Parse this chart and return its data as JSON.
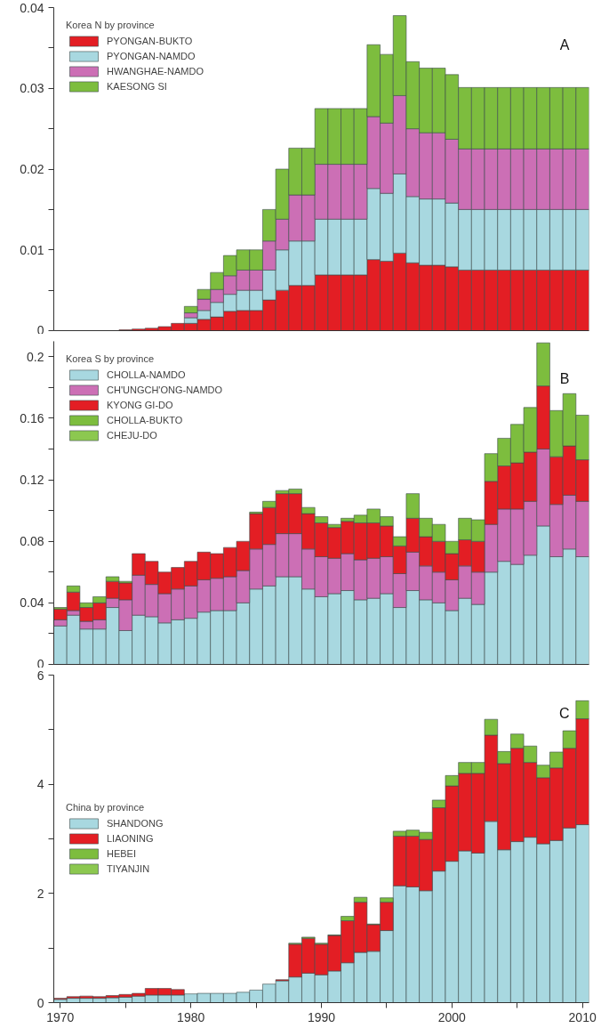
{
  "chart_data": [
    {
      "type": "bar",
      "stacked": true,
      "legend_title": "Korea N by province",
      "annotations": [
        "A"
      ],
      "legend": "top left",
      "grid": false,
      "tick_labels": "y",
      "x": [
        1970,
        1971,
        1972,
        1973,
        1974,
        1975,
        1976,
        1977,
        1978,
        1979,
        1980,
        1981,
        1982,
        1983,
        1984,
        1985,
        1986,
        1987,
        1988,
        1989,
        1990,
        1991,
        1992,
        1993,
        1994,
        1995,
        1996,
        1997,
        1998,
        1999,
        2000,
        2001,
        2002,
        2003,
        2004,
        2005,
        2006,
        2007,
        2008,
        2009,
        2010
      ],
      "xlim": [
        1969.5,
        2010.5
      ],
      "ylim": [
        0,
        0.04
      ],
      "yticks": [
        0,
        {
          "value": 0.005,
          "label": null
        },
        0.01,
        {
          "value": 0.015,
          "label": null
        },
        0.02,
        {
          "value": 0.025,
          "label": null
        },
        0.03,
        {
          "value": 0.035,
          "label": null
        },
        0.04
      ],
      "series": [
        {
          "name": "PYONGAN-BUKTO",
          "color": "#e31e24",
          "values": [
            0,
            0,
            0,
            0,
            0,
            0.0001,
            0.0002,
            0.0003,
            0.0005,
            0.0009,
            0.0009,
            0.0014,
            0.0017,
            0.0024,
            0.0025,
            0.0025,
            0.0038,
            0.005,
            0.0056,
            0.0056,
            0.0069,
            0.0069,
            0.0069,
            0.0069,
            0.0088,
            0.0086,
            0.0096,
            0.0084,
            0.0081,
            0.0081,
            0.0079,
            0.0075,
            0.0075,
            0.0075,
            0.0075,
            0.0075,
            0.0075,
            0.0075,
            0.0075,
            0.0075,
            0.0075
          ]
        },
        {
          "name": "PYONGAN-NAMDO",
          "color": "#a8d8e0",
          "values": [
            0,
            0,
            0,
            0,
            0,
            0,
            0,
            0,
            0,
            0,
            0.0007,
            0.0011,
            0.0018,
            0.0021,
            0.0025,
            0.0025,
            0.0037,
            0.005,
            0.0055,
            0.0055,
            0.0069,
            0.0069,
            0.0069,
            0.0069,
            0.0088,
            0.0084,
            0.0098,
            0.0082,
            0.0082,
            0.0082,
            0.0079,
            0.0075,
            0.0075,
            0.0075,
            0.0075,
            0.0075,
            0.0075,
            0.0075,
            0.0075,
            0.0075,
            0.0075
          ]
        },
        {
          "name": "HWANGHAE-NAMDO",
          "color": "#cc6fb5",
          "values": [
            0,
            0,
            0,
            0,
            0,
            0,
            0,
            0,
            0,
            0,
            0.0006,
            0.0014,
            0.0016,
            0.0023,
            0.0025,
            0.0025,
            0.0036,
            0.0038,
            0.0057,
            0.0057,
            0.0068,
            0.0068,
            0.0068,
            0.0068,
            0.0089,
            0.0087,
            0.0097,
            0.0084,
            0.0082,
            0.0082,
            0.0079,
            0.0075,
            0.0075,
            0.0075,
            0.0075,
            0.0075,
            0.0075,
            0.0075,
            0.0075,
            0.0075,
            0.0075
          ]
        },
        {
          "name": "KAESONG SI",
          "color": "#7dbd3e",
          "values": [
            0,
            0,
            0,
            0,
            0,
            0,
            0,
            0,
            0,
            0,
            0.0008,
            0.0012,
            0.0021,
            0.0025,
            0.0025,
            0.0025,
            0.0039,
            0.0062,
            0.0058,
            0.0058,
            0.0069,
            0.0069,
            0.0069,
            0.0069,
            0.0089,
            0.0085,
            0.0099,
            0.0083,
            0.008,
            0.008,
            0.008,
            0.0076,
            0.0076,
            0.0076,
            0.0076,
            0.0076,
            0.0076,
            0.0076,
            0.0076,
            0.0076,
            0.0076
          ]
        }
      ]
    },
    {
      "type": "bar",
      "stacked": true,
      "legend_title": "Korea S by province",
      "annotations": [
        "B"
      ],
      "legend": "top left",
      "grid": false,
      "tick_labels": "y",
      "x": [
        1970,
        1971,
        1972,
        1973,
        1974,
        1975,
        1976,
        1977,
        1978,
        1979,
        1980,
        1981,
        1982,
        1983,
        1984,
        1985,
        1986,
        1987,
        1988,
        1989,
        1990,
        1991,
        1992,
        1993,
        1994,
        1995,
        1996,
        1997,
        1998,
        1999,
        2000,
        2001,
        2002,
        2003,
        2004,
        2005,
        2006,
        2007,
        2008,
        2009,
        2010
      ],
      "xlim": [
        1969.5,
        2010.5
      ],
      "ylim": [
        0,
        0.21
      ],
      "yticks": [
        0,
        {
          "value": 0.02,
          "label": null
        },
        0.04,
        {
          "value": 0.06,
          "label": null
        },
        0.08,
        {
          "value": 0.1,
          "label": null
        },
        0.12,
        {
          "value": 0.14,
          "label": null
        },
        0.16,
        {
          "value": 0.18,
          "label": null
        },
        0.2
      ],
      "series": [
        {
          "name": "CHOLLA-NAMDO",
          "color": "#a8d8e0",
          "values": [
            0.025,
            0.032,
            0.023,
            0.023,
            0.037,
            0.022,
            0.032,
            0.031,
            0.027,
            0.029,
            0.03,
            0.034,
            0.035,
            0.035,
            0.04,
            0.049,
            0.051,
            0.057,
            0.057,
            0.049,
            0.044,
            0.046,
            0.048,
            0.042,
            0.043,
            0.046,
            0.037,
            0.048,
            0.042,
            0.04,
            0.035,
            0.043,
            0.039,
            0.06,
            0.067,
            0.065,
            0.071,
            0.09,
            0.07,
            0.075,
            0.07
          ]
        },
        {
          "name": "CH'UNGCH'ONG-NAMDO",
          "color": "#cc6fb5",
          "values": [
            0.004,
            0.003,
            0.005,
            0.006,
            0.006,
            0.02,
            0.026,
            0.021,
            0.019,
            0.02,
            0.021,
            0.021,
            0.021,
            0.022,
            0.021,
            0.026,
            0.027,
            0.028,
            0.028,
            0.026,
            0.026,
            0.023,
            0.024,
            0.026,
            0.026,
            0.024,
            0.022,
            0.025,
            0.022,
            0.02,
            0.02,
            0.021,
            0.021,
            0.031,
            0.034,
            0.036,
            0.035,
            0.05,
            0.034,
            0.035,
            0.036
          ]
        },
        {
          "name": "KYONG GI-DO",
          "color": "#e31e24",
          "values": [
            0.007,
            0.012,
            0.009,
            0.011,
            0.011,
            0.011,
            0.014,
            0.015,
            0.014,
            0.014,
            0.016,
            0.018,
            0.016,
            0.019,
            0.019,
            0.023,
            0.024,
            0.026,
            0.026,
            0.023,
            0.022,
            0.02,
            0.021,
            0.024,
            0.023,
            0.02,
            0.018,
            0.022,
            0.019,
            0.02,
            0.017,
            0.017,
            0.02,
            0.028,
            0.028,
            0.03,
            0.032,
            0.041,
            0.031,
            0.032,
            0.027
          ]
        },
        {
          "name": "CHOLLA-BUKTO",
          "color": "#7dbd3e",
          "values": [
            0.001,
            0.004,
            0.003,
            0.004,
            0.003,
            0.001,
            0,
            0,
            0,
            0,
            0,
            0,
            0,
            0,
            0,
            0.001,
            0.004,
            0.002,
            0.003,
            0.004,
            0.004,
            0.002,
            0.002,
            0.005,
            0.009,
            0.006,
            0.006,
            0.016,
            0.012,
            0.011,
            0.008,
            0.014,
            0.014,
            0.018,
            0.018,
            0.025,
            0.029,
            0.028,
            0.03,
            0.034,
            0.029
          ]
        },
        {
          "name": "CHEJU-DO",
          "color": "#8cc850",
          "values": [
            null,
            null,
            null,
            null,
            null,
            null,
            null,
            null,
            null,
            null,
            null,
            null,
            null,
            null,
            null,
            null,
            null,
            null,
            null,
            null,
            null,
            null,
            null,
            null,
            null,
            null,
            null,
            null,
            null,
            null,
            null,
            null,
            null,
            null,
            null,
            null,
            null,
            null,
            null,
            null,
            null
          ]
        }
      ]
    },
    {
      "type": "bar",
      "stacked": true,
      "legend_title": "China by province",
      "annotations": [
        "C"
      ],
      "legend": "left",
      "grid": false,
      "x": [
        1970,
        1971,
        1972,
        1973,
        1974,
        1975,
        1976,
        1977,
        1978,
        1979,
        1980,
        1981,
        1982,
        1983,
        1984,
        1985,
        1986,
        1987,
        1988,
        1989,
        1990,
        1991,
        1992,
        1993,
        1994,
        1995,
        1996,
        1997,
        1998,
        1999,
        2000,
        2001,
        2002,
        2003,
        2004,
        2005,
        2006,
        2007,
        2008,
        2009,
        2010
      ],
      "xlim": [
        1969.5,
        2010.5
      ],
      "ylim": [
        0,
        6
      ],
      "xticks": [
        1970,
        {
          "value": 1975,
          "label": null
        },
        1980,
        {
          "value": 1985,
          "label": null
        },
        1990,
        {
          "value": 1995,
          "label": null
        },
        2000,
        {
          "value": 2005,
          "label": null
        },
        2010
      ],
      "yticks": [
        0,
        {
          "value": 1,
          "label": null
        },
        2,
        {
          "value": 3,
          "label": null
        },
        4,
        {
          "value": 5,
          "label": null
        },
        6
      ],
      "series": [
        {
          "name": "SHANDONG",
          "color": "#a8d8e0",
          "values": [
            0.06,
            0.08,
            0.08,
            0.08,
            0.09,
            0.1,
            0.12,
            0.14,
            0.14,
            0.14,
            0.16,
            0.17,
            0.17,
            0.17,
            0.19,
            0.23,
            0.34,
            0.4,
            0.47,
            0.54,
            0.51,
            0.58,
            0.73,
            0.92,
            0.94,
            1.32,
            2.14,
            2.12,
            2.05,
            2.41,
            2.59,
            2.78,
            2.74,
            3.32,
            2.8,
            2.95,
            3.03,
            2.91,
            2.97,
            3.2,
            3.26
          ]
        },
        {
          "name": "LIAONING",
          "color": "#e31e24",
          "values": [
            0.02,
            0.03,
            0.04,
            0.03,
            0.04,
            0.05,
            0.05,
            0.12,
            0.12,
            0.1,
            0,
            0,
            0,
            0,
            0,
            0,
            0,
            0.02,
            0.6,
            0.64,
            0.56,
            0.65,
            0.77,
            0.92,
            0.49,
            0.52,
            0.91,
            0.93,
            0.94,
            1.16,
            1.38,
            1.42,
            1.46,
            1.58,
            1.58,
            1.71,
            1.37,
            1.21,
            1.33,
            1.46,
            1.94
          ]
        },
        {
          "name": "HEBEI",
          "color": "#7dbd3e",
          "values": [
            0,
            0,
            0,
            0,
            0,
            0,
            0,
            0,
            0,
            0,
            0,
            0,
            0,
            0,
            0,
            0,
            0,
            0,
            0.02,
            0.02,
            0.02,
            0.01,
            0.08,
            0.09,
            0.01,
            0.08,
            0.09,
            0.11,
            0.13,
            0.14,
            0.19,
            0.2,
            0.2,
            0.29,
            0.22,
            0.26,
            0.3,
            0.23,
            0.29,
            0.32,
            0.33
          ]
        },
        {
          "name": "TIYANJIN",
          "color": "#8cc850",
          "values": [
            null,
            null,
            null,
            null,
            null,
            null,
            null,
            null,
            null,
            null,
            null,
            null,
            null,
            null,
            null,
            null,
            null,
            null,
            null,
            null,
            null,
            null,
            null,
            null,
            null,
            null,
            null,
            null,
            null,
            null,
            null,
            null,
            null,
            null,
            null,
            null,
            null,
            null,
            null,
            null,
            null
          ]
        }
      ]
    }
  ]
}
